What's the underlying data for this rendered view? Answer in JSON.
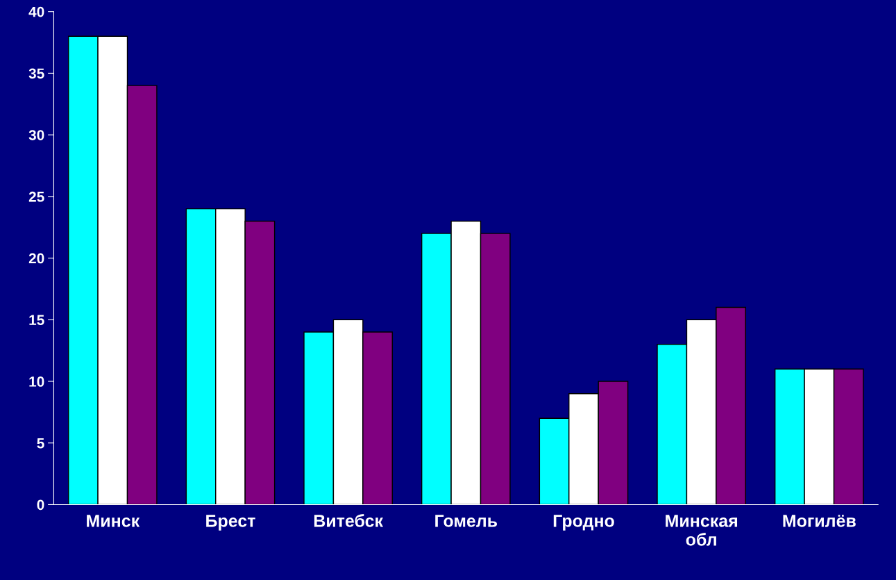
{
  "chart_data": {
    "type": "bar",
    "categories": [
      "Минск",
      "Брест",
      "Витебск",
      "Гомель",
      "Гродно",
      "Минская обл",
      "Могилёв"
    ],
    "series": [
      {
        "color": "#00ffff",
        "values": [
          38,
          24,
          14,
          22,
          7,
          13,
          11
        ]
      },
      {
        "color": "#ffffff",
        "values": [
          38,
          24,
          15,
          23,
          9,
          15,
          11
        ]
      },
      {
        "color": "#800080",
        "values": [
          34,
          23,
          14,
          22,
          10,
          16,
          11
        ]
      }
    ],
    "ylim": [
      0,
      40
    ],
    "yticks": [
      0,
      5,
      10,
      15,
      20,
      25,
      30,
      35,
      40
    ],
    "grid": false
  }
}
